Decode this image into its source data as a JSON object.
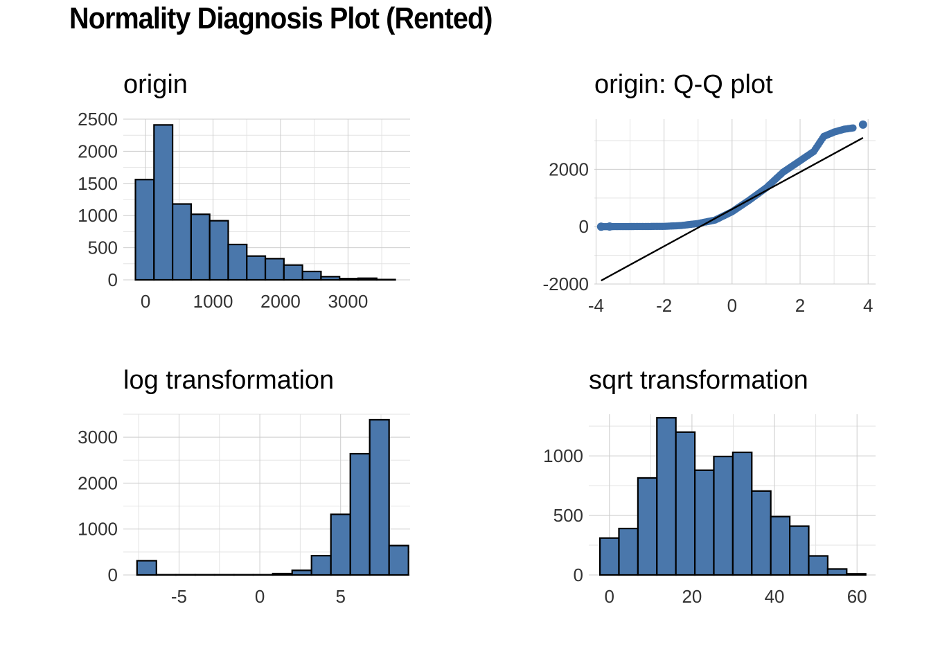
{
  "title": "Normality Diagnosis Plot (Rented)",
  "colors": {
    "bar_fill": "#4a77ab",
    "bar_stroke": "#000000",
    "point": "#3d6ea8",
    "grid": "#cccccc"
  },
  "chart_data": [
    {
      "type": "bar",
      "title": "origin",
      "bins": [
        {
          "x0": -150,
          "x1": 125,
          "count": 1560
        },
        {
          "x0": 125,
          "x1": 400,
          "count": 2410
        },
        {
          "x0": 400,
          "x1": 675,
          "count": 1180
        },
        {
          "x0": 675,
          "x1": 950,
          "count": 1020
        },
        {
          "x0": 950,
          "x1": 1225,
          "count": 920
        },
        {
          "x0": 1225,
          "x1": 1500,
          "count": 550
        },
        {
          "x0": 1500,
          "x1": 1775,
          "count": 370
        },
        {
          "x0": 1775,
          "x1": 2050,
          "count": 330
        },
        {
          "x0": 2050,
          "x1": 2325,
          "count": 230
        },
        {
          "x0": 2325,
          "x1": 2600,
          "count": 130
        },
        {
          "x0": 2600,
          "x1": 2875,
          "count": 50
        },
        {
          "x0": 2875,
          "x1": 3150,
          "count": 20
        },
        {
          "x0": 3150,
          "x1": 3425,
          "count": 25
        },
        {
          "x0": 3425,
          "x1": 3700,
          "count": 5
        }
      ],
      "xlim": [
        -330,
        3920
      ],
      "ylim": [
        0,
        2500
      ],
      "xticks": [
        0,
        1000,
        2000,
        3000
      ],
      "xtick_labels": [
        "0",
        "1000",
        "2000",
        "3000"
      ],
      "yticks": [
        0,
        500,
        1000,
        1500,
        2000,
        2500
      ],
      "ytick_labels": [
        "0",
        "500",
        "1000",
        "1500",
        "2000",
        "2500"
      ],
      "grid": true
    },
    {
      "type": "scatter",
      "title": "origin: Q-Q plot",
      "xlim": [
        -4.05,
        4.22
      ],
      "ylim": [
        -2000,
        3750
      ],
      "xticks": [
        -4,
        -2,
        0,
        2,
        4
      ],
      "xtick_labels": [
        "-4",
        "-2",
        "0",
        "2",
        "4"
      ],
      "yticks": [
        -2000,
        0,
        2000
      ],
      "ytick_labels": [
        "-2000",
        "0",
        "2000"
      ],
      "curve": [
        [
          -3.85,
          0
        ],
        [
          -3.6,
          2
        ],
        [
          -3.0,
          5
        ],
        [
          -2.0,
          10
        ],
        [
          -1.5,
          40
        ],
        [
          -1.0,
          110
        ],
        [
          -0.5,
          230
        ],
        [
          0.0,
          520
        ],
        [
          0.5,
          920
        ],
        [
          1.0,
          1350
        ],
        [
          1.5,
          1900
        ],
        [
          2.0,
          2300
        ],
        [
          2.4,
          2620
        ],
        [
          2.7,
          3150
        ],
        [
          3.0,
          3300
        ],
        [
          3.3,
          3400
        ],
        [
          3.6,
          3450
        ]
      ],
      "outliers": [
        [
          -3.85,
          0
        ],
        [
          -3.6,
          5
        ],
        [
          3.85,
          3560
        ]
      ],
      "reference_line": [
        [
          -3.85,
          -1880
        ],
        [
          3.85,
          3100
        ]
      ],
      "grid": true
    },
    {
      "type": "bar",
      "title": "log transformation",
      "bins": [
        {
          "x0": -7.6,
          "x1": -6.4,
          "count": 310
        },
        {
          "x0": -6.4,
          "x1": -5.2,
          "count": 5
        },
        {
          "x0": -5.2,
          "x1": -4.0,
          "count": 5
        },
        {
          "x0": -4.0,
          "x1": -2.8,
          "count": 5
        },
        {
          "x0": -2.8,
          "x1": -1.6,
          "count": 5
        },
        {
          "x0": -1.6,
          "x1": -0.4,
          "count": 5
        },
        {
          "x0": -0.4,
          "x1": 0.8,
          "count": 5
        },
        {
          "x0": 0.8,
          "x1": 2.0,
          "count": 30
        },
        {
          "x0": 2.0,
          "x1": 3.2,
          "count": 100
        },
        {
          "x0": 3.2,
          "x1": 4.4,
          "count": 420
        },
        {
          "x0": 4.4,
          "x1": 5.6,
          "count": 1320
        },
        {
          "x0": 5.6,
          "x1": 6.8,
          "count": 2640
        },
        {
          "x0": 6.8,
          "x1": 8.0,
          "count": 3380
        },
        {
          "x0": 8.0,
          "x1": 9.2,
          "count": 640
        }
      ],
      "xlim": [
        -8.45,
        9.3
      ],
      "ylim": [
        0,
        3500
      ],
      "xticks": [
        -5,
        0,
        5
      ],
      "xtick_labels": [
        "-5",
        "0",
        "5"
      ],
      "yticks": [
        0,
        1000,
        2000,
        3000
      ],
      "ytick_labels": [
        "0",
        "1000",
        "2000",
        "3000"
      ],
      "grid": true
    },
    {
      "type": "bar",
      "title": "sqrt transformation",
      "bins": [
        {
          "x0": -2.3,
          "x1": 2.3,
          "count": 310
        },
        {
          "x0": 2.3,
          "x1": 6.9,
          "count": 390
        },
        {
          "x0": 6.9,
          "x1": 11.5,
          "count": 815
        },
        {
          "x0": 11.5,
          "x1": 16.1,
          "count": 1320
        },
        {
          "x0": 16.1,
          "x1": 20.7,
          "count": 1200
        },
        {
          "x0": 20.7,
          "x1": 25.3,
          "count": 880
        },
        {
          "x0": 25.3,
          "x1": 29.9,
          "count": 995
        },
        {
          "x0": 29.9,
          "x1": 34.5,
          "count": 1030
        },
        {
          "x0": 34.5,
          "x1": 39.1,
          "count": 705
        },
        {
          "x0": 39.1,
          "x1": 43.7,
          "count": 490
        },
        {
          "x0": 43.7,
          "x1": 48.3,
          "count": 410
        },
        {
          "x0": 48.3,
          "x1": 52.9,
          "count": 160
        },
        {
          "x0": 52.9,
          "x1": 57.5,
          "count": 50
        },
        {
          "x0": 57.5,
          "x1": 62.1,
          "count": 10
        }
      ],
      "xlim": [
        -5.0,
        64.5
      ],
      "ylim": [
        0,
        1350
      ],
      "xticks": [
        0,
        20,
        40,
        60
      ],
      "xtick_labels": [
        "0",
        "20",
        "40",
        "60"
      ],
      "yticks": [
        0,
        500,
        1000
      ],
      "ytick_labels": [
        "0",
        "500",
        "1000"
      ],
      "grid": true
    }
  ]
}
